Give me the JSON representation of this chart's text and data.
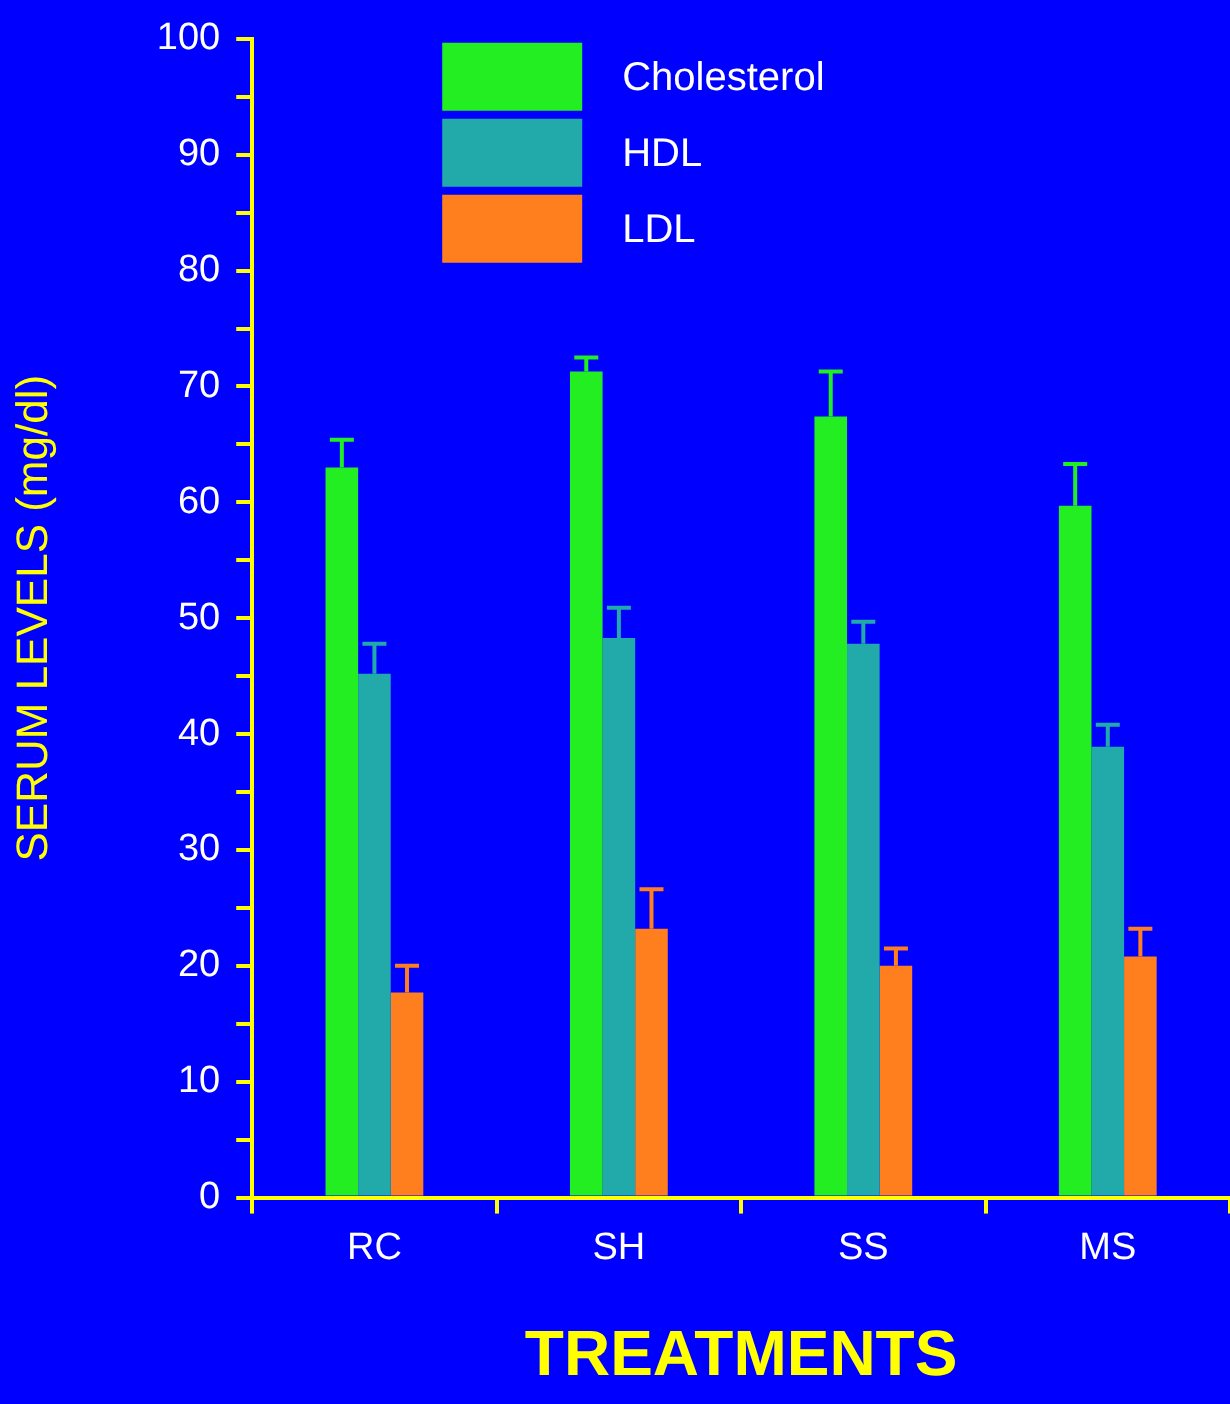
{
  "chart_data": {
    "type": "bar",
    "xlabel": "TREATMENTS",
    "ylabel": "SERUM LEVELS (mg/dl)",
    "categories": [
      "RC",
      "SH",
      "SS",
      "MS"
    ],
    "series": [
      {
        "name": "Cholesterol",
        "color": "#22ee22",
        "values": [
          63,
          71.3,
          67.4,
          59.7
        ],
        "errors": [
          [
            63,
            65.4
          ],
          [
            71.3,
            72.5
          ],
          [
            67.4,
            71.3
          ],
          [
            59.7,
            63.3
          ]
        ]
      },
      {
        "name": "HDL",
        "color": "#22aaaa",
        "values": [
          45.2,
          48.3,
          47.8,
          38.9
        ],
        "errors": [
          [
            45.2,
            47.8
          ],
          [
            48.3,
            50.9
          ],
          [
            47.8,
            49.7
          ],
          [
            38.9,
            40.8
          ]
        ]
      },
      {
        "name": "LDL",
        "color": "#ff7f1f",
        "values": [
          17.7,
          23.2,
          20,
          20.8
        ],
        "errors": [
          [
            17.7,
            20
          ],
          [
            23.2,
            26.6
          ],
          [
            20,
            21.5
          ],
          [
            20.8,
            23.2
          ]
        ]
      }
    ],
    "ylim": [
      0,
      100
    ],
    "yticks": [
      0,
      {
        "value": 5,
        "label": null
      },
      10,
      {
        "value": 15,
        "label": null
      },
      20,
      {
        "value": 25,
        "label": null
      },
      30,
      {
        "value": 35,
        "label": null
      },
      40,
      {
        "value": 45,
        "label": null
      },
      50,
      {
        "value": 55,
        "label": null
      },
      60,
      {
        "value": 65,
        "label": null
      },
      70,
      {
        "value": 75,
        "label": null
      },
      80,
      {
        "value": 85,
        "label": null
      },
      90,
      {
        "value": 95,
        "label": null
      },
      100
    ],
    "grid": false,
    "legend": "top"
  }
}
